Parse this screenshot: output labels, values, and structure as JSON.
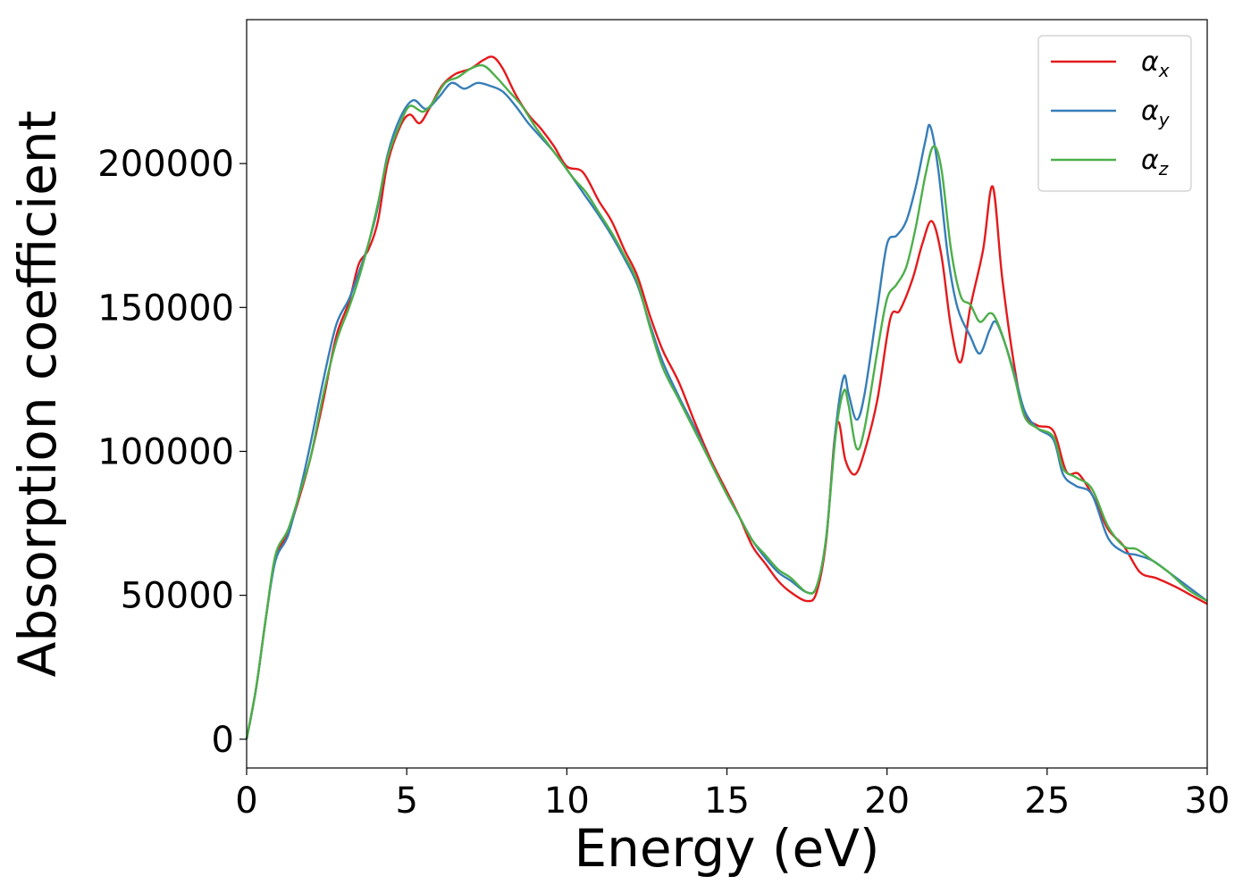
{
  "chart_data": {
    "type": "line",
    "xlabel": "Energy (eV)",
    "ylabel": "Absorption coefficient",
    "xlim": [
      0,
      30
    ],
    "ylim": [
      -10000,
      250000
    ],
    "xticks": [
      0,
      5,
      10,
      15,
      20,
      25,
      30
    ],
    "xtick_labels": [
      "0",
      "5",
      "10",
      "15",
      "20",
      "25",
      "30"
    ],
    "yticks": [
      0,
      50000,
      100000,
      150000,
      200000
    ],
    "ytick_labels": [
      "0",
      "50000",
      "100000",
      "150000",
      "200000"
    ],
    "grid": false,
    "legend_position": "top-right",
    "series": [
      {
        "name": "α",
        "subscript": "x",
        "color": "#e41a1c",
        "points": [
          [
            0,
            0
          ],
          [
            0.3,
            18000
          ],
          [
            0.6,
            42000
          ],
          [
            0.9,
            63000
          ],
          [
            1.3,
            72000
          ],
          [
            1.7,
            86000
          ],
          [
            2.0,
            98000
          ],
          [
            2.4,
            118000
          ],
          [
            2.8,
            140000
          ],
          [
            3.2,
            152000
          ],
          [
            3.5,
            165000
          ],
          [
            3.8,
            170000
          ],
          [
            4.1,
            180000
          ],
          [
            4.4,
            200000
          ],
          [
            4.8,
            213000
          ],
          [
            5.1,
            217000
          ],
          [
            5.4,
            214000
          ],
          [
            5.7,
            219000
          ],
          [
            6.1,
            227000
          ],
          [
            6.5,
            231000
          ],
          [
            7.0,
            233000
          ],
          [
            7.4,
            236000
          ],
          [
            7.7,
            237000
          ],
          [
            8.0,
            233000
          ],
          [
            8.4,
            224000
          ],
          [
            8.8,
            217000
          ],
          [
            9.2,
            212000
          ],
          [
            9.6,
            206000
          ],
          [
            10.0,
            199000
          ],
          [
            10.5,
            197000
          ],
          [
            11.0,
            187000
          ],
          [
            11.4,
            180000
          ],
          [
            11.8,
            170000
          ],
          [
            12.2,
            161000
          ],
          [
            12.6,
            147000
          ],
          [
            13.0,
            135000
          ],
          [
            13.5,
            124000
          ],
          [
            14.0,
            110000
          ],
          [
            14.5,
            97000
          ],
          [
            15.0,
            86000
          ],
          [
            15.4,
            77000
          ],
          [
            15.8,
            67000
          ],
          [
            16.2,
            61000
          ],
          [
            16.6,
            55000
          ],
          [
            17.0,
            51000
          ],
          [
            17.5,
            48000
          ],
          [
            17.8,
            51000
          ],
          [
            18.1,
            69000
          ],
          [
            18.35,
            103000
          ],
          [
            18.5,
            110000
          ],
          [
            18.7,
            97000
          ],
          [
            19.0,
            92000
          ],
          [
            19.3,
            100000
          ],
          [
            19.7,
            118000
          ],
          [
            20.1,
            146000
          ],
          [
            20.4,
            149000
          ],
          [
            20.8,
            160000
          ],
          [
            21.1,
            172000
          ],
          [
            21.4,
            180000
          ],
          [
            21.7,
            168000
          ],
          [
            22.0,
            143000
          ],
          [
            22.3,
            131000
          ],
          [
            22.6,
            150000
          ],
          [
            23.0,
            170000
          ],
          [
            23.3,
            192000
          ],
          [
            23.6,
            160000
          ],
          [
            24.0,
            128000
          ],
          [
            24.3,
            113000
          ],
          [
            24.7,
            109000
          ],
          [
            25.2,
            107000
          ],
          [
            25.6,
            93000
          ],
          [
            26.0,
            92000
          ],
          [
            26.5,
            83000
          ],
          [
            26.9,
            73000
          ],
          [
            27.4,
            67000
          ],
          [
            27.9,
            58000
          ],
          [
            28.4,
            56000
          ],
          [
            29.0,
            53000
          ],
          [
            29.5,
            50000
          ],
          [
            30.0,
            47000
          ]
        ]
      },
      {
        "name": "α",
        "subscript": "y",
        "color": "#377eb8",
        "points": [
          [
            0,
            0
          ],
          [
            0.3,
            18000
          ],
          [
            0.6,
            42000
          ],
          [
            0.9,
            62000
          ],
          [
            1.3,
            71000
          ],
          [
            1.7,
            88000
          ],
          [
            2.0,
            103000
          ],
          [
            2.4,
            125000
          ],
          [
            2.8,
            144000
          ],
          [
            3.2,
            153000
          ],
          [
            3.5,
            162000
          ],
          [
            3.8,
            172000
          ],
          [
            4.1,
            185000
          ],
          [
            4.4,
            203000
          ],
          [
            4.8,
            216000
          ],
          [
            5.2,
            222000
          ],
          [
            5.6,
            219000
          ],
          [
            6.0,
            223000
          ],
          [
            6.4,
            228000
          ],
          [
            6.8,
            226000
          ],
          [
            7.2,
            228000
          ],
          [
            7.6,
            227000
          ],
          [
            8.0,
            225000
          ],
          [
            8.4,
            220000
          ],
          [
            8.8,
            214000
          ],
          [
            9.2,
            209000
          ],
          [
            9.6,
            204000
          ],
          [
            10.0,
            198000
          ],
          [
            10.5,
            190000
          ],
          [
            11.0,
            182000
          ],
          [
            11.4,
            175000
          ],
          [
            11.8,
            167000
          ],
          [
            12.2,
            158000
          ],
          [
            12.6,
            144000
          ],
          [
            13.0,
            131000
          ],
          [
            13.5,
            119000
          ],
          [
            14.0,
            108000
          ],
          [
            14.5,
            96000
          ],
          [
            15.0,
            85000
          ],
          [
            15.4,
            77000
          ],
          [
            15.8,
            69000
          ],
          [
            16.2,
            63000
          ],
          [
            16.6,
            58000
          ],
          [
            17.0,
            55000
          ],
          [
            17.5,
            51000
          ],
          [
            17.8,
            53000
          ],
          [
            18.1,
            70000
          ],
          [
            18.4,
            108000
          ],
          [
            18.65,
            126000
          ],
          [
            18.8,
            120000
          ],
          [
            19.05,
            111000
          ],
          [
            19.3,
            120000
          ],
          [
            19.7,
            150000
          ],
          [
            20.0,
            172000
          ],
          [
            20.3,
            175000
          ],
          [
            20.6,
            180000
          ],
          [
            20.9,
            192000
          ],
          [
            21.2,
            208000
          ],
          [
            21.35,
            213000
          ],
          [
            21.6,
            198000
          ],
          [
            21.9,
            168000
          ],
          [
            22.2,
            150000
          ],
          [
            22.6,
            140000
          ],
          [
            22.9,
            134000
          ],
          [
            23.2,
            142000
          ],
          [
            23.4,
            145000
          ],
          [
            23.7,
            137000
          ],
          [
            24.0,
            126000
          ],
          [
            24.3,
            114000
          ],
          [
            24.7,
            108000
          ],
          [
            25.2,
            104000
          ],
          [
            25.5,
            92000
          ],
          [
            25.9,
            88000
          ],
          [
            26.4,
            85000
          ],
          [
            26.9,
            70000
          ],
          [
            27.4,
            65000
          ],
          [
            27.8,
            64000
          ],
          [
            28.3,
            62000
          ],
          [
            28.8,
            58000
          ],
          [
            29.4,
            53000
          ],
          [
            30.0,
            48000
          ]
        ]
      },
      {
        "name": "α",
        "subscript": "z",
        "color": "#4daf4a",
        "points": [
          [
            0,
            0
          ],
          [
            0.3,
            18000
          ],
          [
            0.6,
            42000
          ],
          [
            0.9,
            64000
          ],
          [
            1.3,
            73000
          ],
          [
            1.7,
            87000
          ],
          [
            2.0,
            98000
          ],
          [
            2.4,
            120000
          ],
          [
            2.8,
            138000
          ],
          [
            3.2,
            150000
          ],
          [
            3.5,
            160000
          ],
          [
            3.8,
            172000
          ],
          [
            4.1,
            186000
          ],
          [
            4.4,
            202000
          ],
          [
            4.8,
            214000
          ],
          [
            5.1,
            220000
          ],
          [
            5.5,
            218000
          ],
          [
            5.8,
            221000
          ],
          [
            6.2,
            228000
          ],
          [
            6.6,
            230000
          ],
          [
            7.0,
            233000
          ],
          [
            7.4,
            234000
          ],
          [
            7.8,
            230000
          ],
          [
            8.2,
            225000
          ],
          [
            8.6,
            220000
          ],
          [
            9.0,
            213000
          ],
          [
            9.4,
            207000
          ],
          [
            9.8,
            201000
          ],
          [
            10.2,
            195000
          ],
          [
            10.6,
            190000
          ],
          [
            11.0,
            183000
          ],
          [
            11.4,
            176000
          ],
          [
            11.8,
            168000
          ],
          [
            12.2,
            159000
          ],
          [
            12.6,
            143000
          ],
          [
            13.0,
            129000
          ],
          [
            13.5,
            118000
          ],
          [
            14.0,
            107000
          ],
          [
            14.5,
            96000
          ],
          [
            15.0,
            85000
          ],
          [
            15.4,
            77000
          ],
          [
            15.8,
            69000
          ],
          [
            16.2,
            64000
          ],
          [
            16.6,
            59000
          ],
          [
            17.0,
            56000
          ],
          [
            17.5,
            51000
          ],
          [
            17.8,
            53000
          ],
          [
            18.1,
            70000
          ],
          [
            18.4,
            106000
          ],
          [
            18.65,
            121000
          ],
          [
            18.8,
            116000
          ],
          [
            19.05,
            101000
          ],
          [
            19.3,
            108000
          ],
          [
            19.7,
            135000
          ],
          [
            20.0,
            153000
          ],
          [
            20.3,
            158000
          ],
          [
            20.6,
            164000
          ],
          [
            20.9,
            178000
          ],
          [
            21.2,
            196000
          ],
          [
            21.45,
            206000
          ],
          [
            21.7,
            198000
          ],
          [
            22.0,
            170000
          ],
          [
            22.3,
            154000
          ],
          [
            22.6,
            151000
          ],
          [
            22.9,
            145000
          ],
          [
            23.2,
            148000
          ],
          [
            23.4,
            146000
          ],
          [
            23.7,
            137000
          ],
          [
            24.0,
            125000
          ],
          [
            24.3,
            112000
          ],
          [
            24.7,
            108000
          ],
          [
            25.2,
            105000
          ],
          [
            25.5,
            94000
          ],
          [
            25.9,
            91000
          ],
          [
            26.4,
            87000
          ],
          [
            26.9,
            74000
          ],
          [
            27.4,
            67000
          ],
          [
            27.8,
            66000
          ],
          [
            28.3,
            62000
          ],
          [
            28.8,
            58000
          ],
          [
            29.4,
            52000
          ],
          [
            30.0,
            48000
          ]
        ]
      }
    ]
  }
}
